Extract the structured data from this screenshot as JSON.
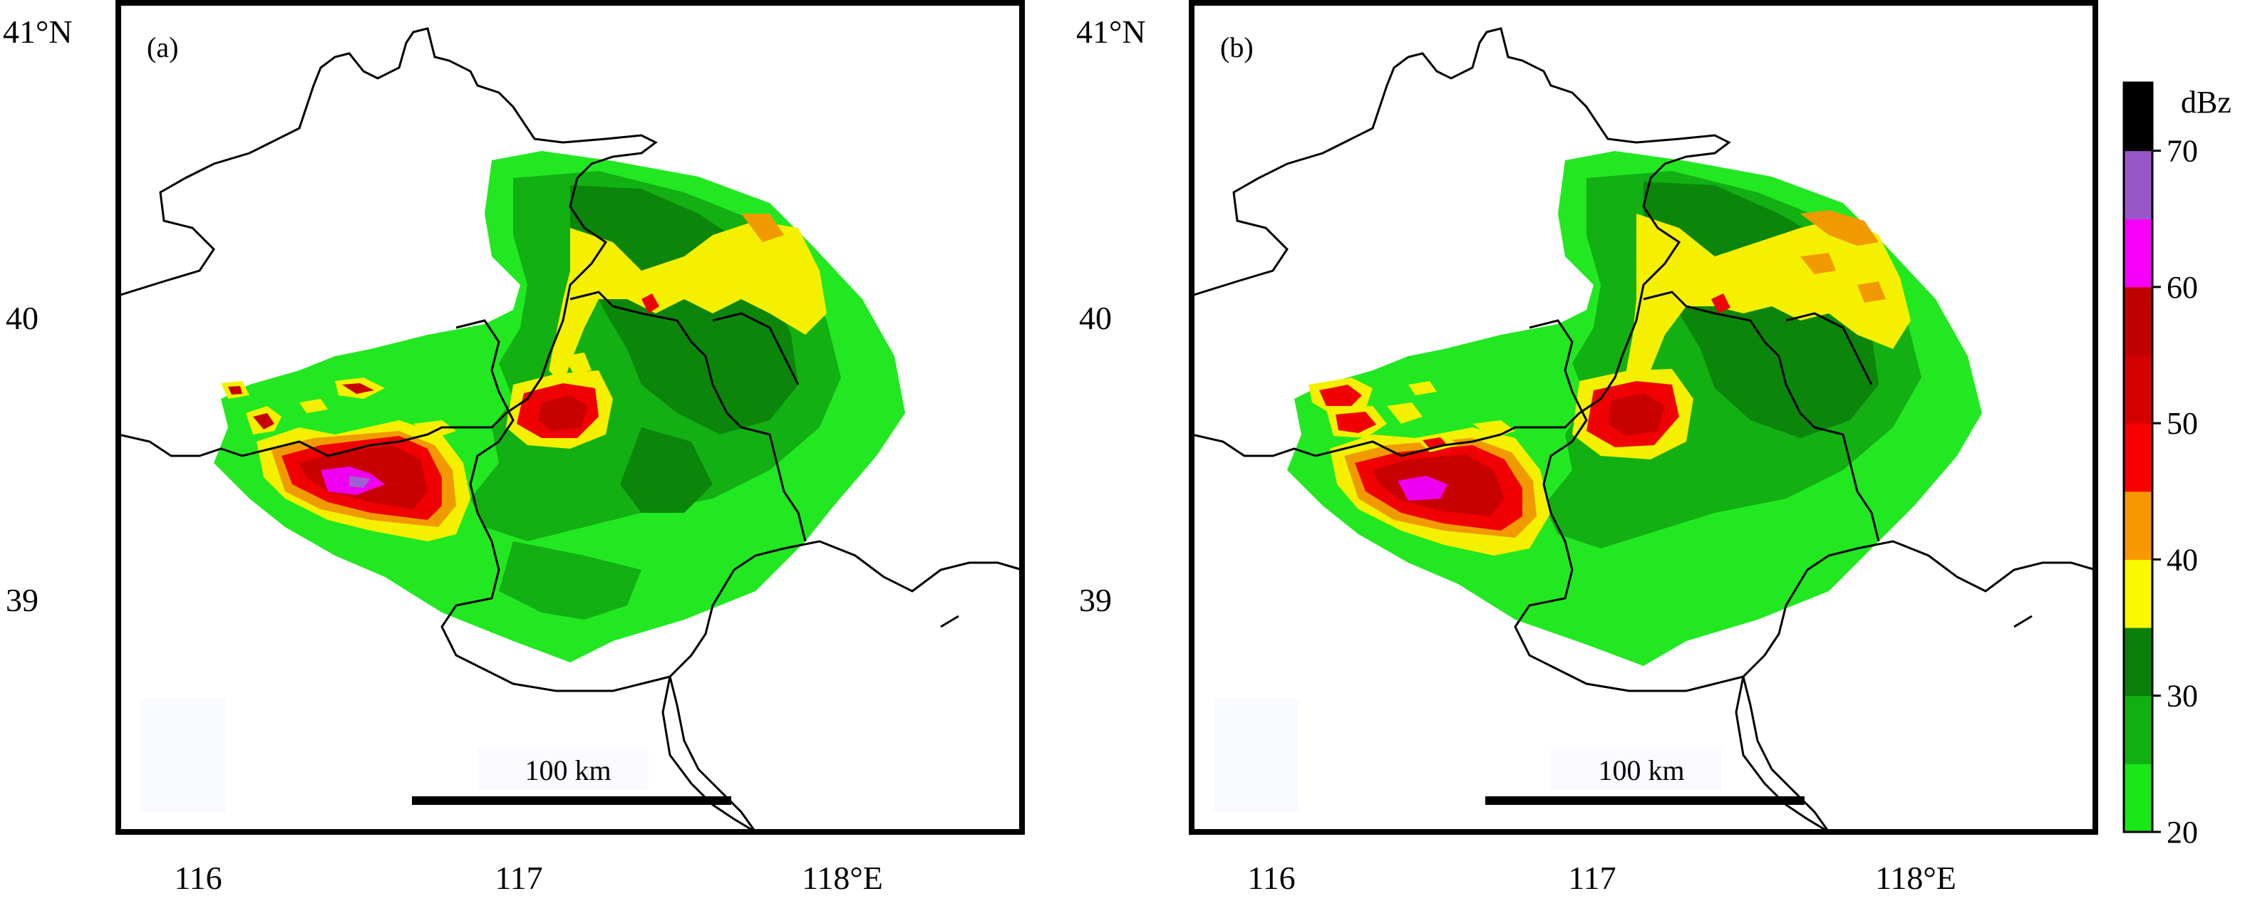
{
  "panels": [
    {
      "id": "a",
      "label": "(a)",
      "lat_labels": [
        "41°N",
        "40",
        "39"
      ],
      "lon_labels": [
        "116",
        "117",
        "118°E"
      ],
      "scale_bar": "100 km"
    },
    {
      "id": "b",
      "label": "(b)",
      "lat_labels": [
        "41°N",
        "40",
        "39"
      ],
      "lon_labels": [
        "116",
        "117",
        "118°E"
      ],
      "scale_bar": "100 km"
    }
  ],
  "colorbar": {
    "unit": "dBz",
    "ticks": [
      "20",
      "30",
      "40",
      "50",
      "60",
      "70"
    ],
    "colors": [
      "#18e818",
      "#10b010",
      "#0a800a",
      "#f8f800",
      "#f89800",
      "#f80000",
      "#d40000",
      "#c00000",
      "#f800f8",
      "#9858c8",
      "#000000"
    ]
  },
  "legend_levels": {
    "light_green": "#22e822",
    "green": "#12b012",
    "dark_green": "#0b860b",
    "yellow": "#f4f000",
    "orange": "#f09a00",
    "red": "#f00000",
    "dark_red": "#c80000",
    "magenta": "#f000f0",
    "purple": "#a060d0"
  }
}
